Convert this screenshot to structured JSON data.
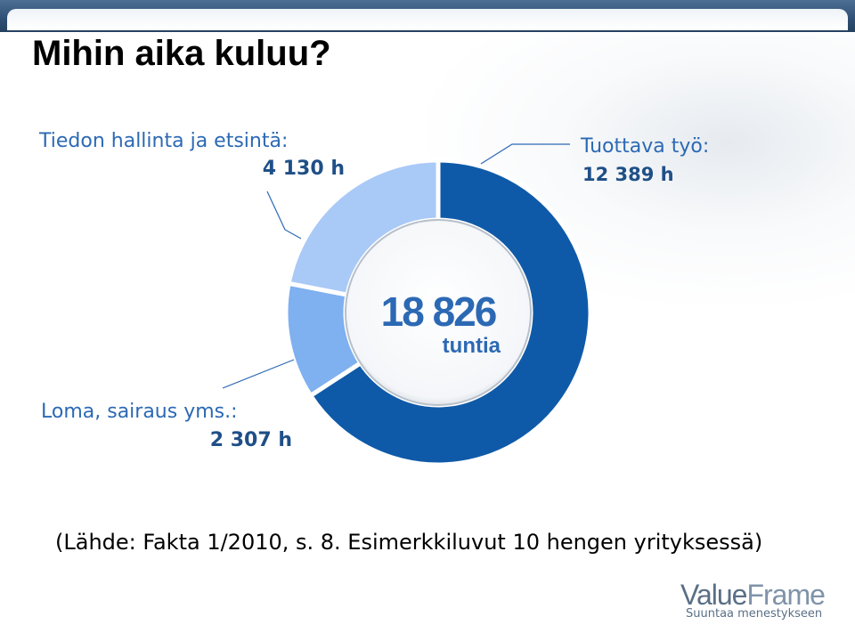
{
  "slide": {
    "title": "Mihin aika kuluu?",
    "source": "(Lähde: Fakta 1/2010, s. 8. Esimerkkiluvut 10 hengen yrityksessä)",
    "logo": {
      "value_text": "Value",
      "frame_text": "Frame",
      "tagline": "Suuntaa menestykseen"
    }
  },
  "chart_data": {
    "type": "pie",
    "title": "Mihin aika kuluu?",
    "center_total": "18 826",
    "center_unit": "tuntia",
    "slices": [
      {
        "label": "Tuottava työ:",
        "value_text": "12 389 h",
        "value": 12389,
        "color": "#0f5aa8"
      },
      {
        "label": "Loma, sairaus yms.:",
        "value_text": "2 307 h",
        "value": 2307,
        "color": "#7fb0f0"
      },
      {
        "label": "Tiedon hallinta ja etsintä:",
        "value_text": "4 130 h",
        "value": 4130,
        "color": "#a9c9f7"
      }
    ]
  }
}
